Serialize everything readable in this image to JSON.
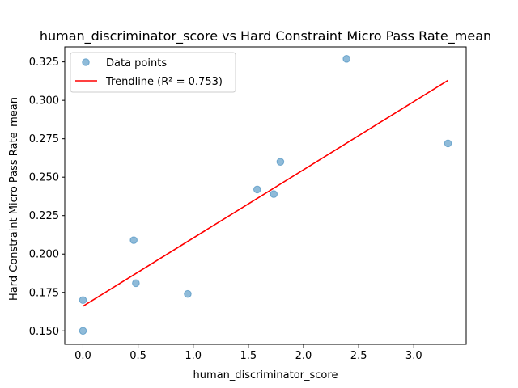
{
  "chart_data": {
    "type": "scatter",
    "title": "human_discriminator_score vs Hard Constraint Micro Pass Rate_mean",
    "xlabel": "human_discriminator_score",
    "ylabel": "Hard Constraint Micro Pass Rate_mean",
    "xlim": [
      -0.165,
      3.475
    ],
    "ylim": [
      0.1412,
      0.3348
    ],
    "xticks": [
      0.0,
      0.5,
      1.0,
      1.5,
      2.0,
      2.5,
      3.0
    ],
    "xtick_labels": [
      "0.0",
      "0.5",
      "1.0",
      "1.5",
      "2.0",
      "2.5",
      "3.0"
    ],
    "yticks": [
      0.15,
      0.175,
      0.2,
      0.225,
      0.25,
      0.275,
      0.3,
      0.325
    ],
    "ytick_labels": [
      "0.150",
      "0.175",
      "0.200",
      "0.225",
      "0.250",
      "0.275",
      "0.300",
      "0.325"
    ],
    "grid": false,
    "legend_position": "top-left",
    "series": [
      {
        "name": "Data points",
        "kind": "scatter",
        "color": "#1f77b4",
        "x": [
          0.0,
          0.0,
          0.46,
          0.48,
          0.95,
          1.58,
          1.73,
          1.79,
          2.39,
          3.31
        ],
        "y": [
          0.17,
          0.15,
          0.209,
          0.181,
          0.174,
          0.242,
          0.239,
          0.26,
          0.327,
          0.272
        ]
      },
      {
        "name": "Trendline (R² = 0.753)",
        "kind": "line",
        "color": "#ff0000",
        "x": [
          0.0,
          3.31
        ],
        "y": [
          0.166,
          0.313
        ]
      }
    ]
  }
}
